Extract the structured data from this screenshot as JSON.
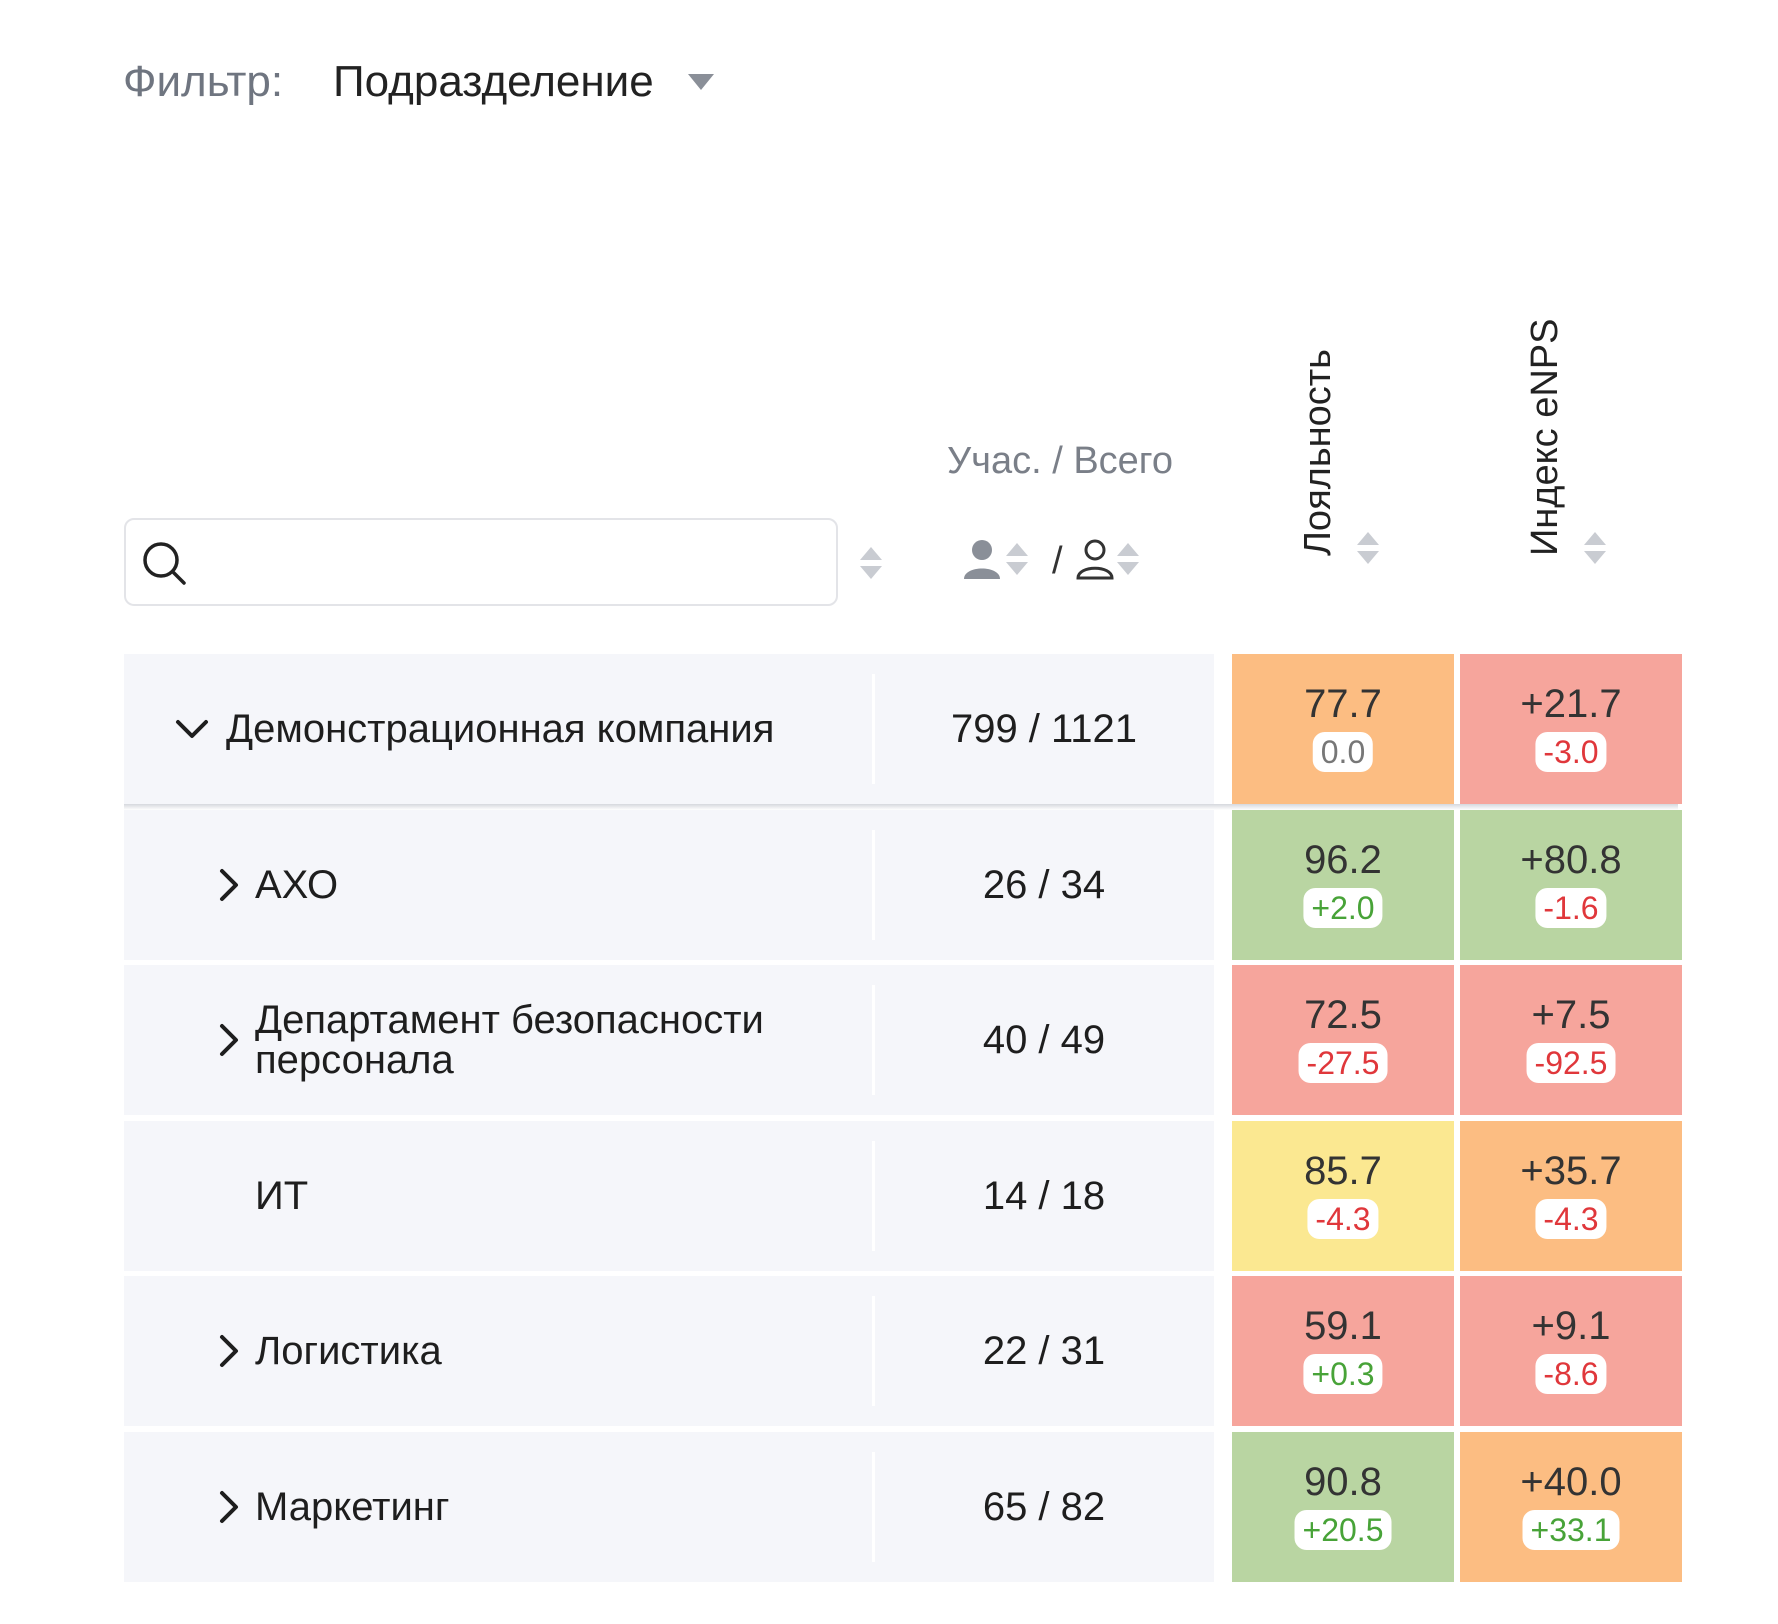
{
  "filter": {
    "label": "Фильтр:",
    "value": "Подразделение"
  },
  "search": {
    "placeholder": ""
  },
  "columns": {
    "participants": "Учас. / Всего",
    "slash": "/",
    "loyalty": "Лояльность",
    "enps": "Индекс eNPS"
  },
  "colors": {
    "orange": "#fcbd82",
    "red": "#f6a59c",
    "green": "#b9d5a2",
    "yellow": "#fbe891",
    "delta_positive": "#48a338",
    "delta_negative": "#e0373b",
    "delta_zero": "#777777"
  },
  "rows": [
    {
      "name": "Демонстрационная компания",
      "count": "799 / 1121",
      "expand": "expanded",
      "loyalty": {
        "value": "77.7",
        "delta": "0.0",
        "color": "orange",
        "delta_type": "zero"
      },
      "enps": {
        "value": "+21.7",
        "delta": "-3.0",
        "color": "red",
        "delta_type": "negative"
      }
    },
    {
      "name": "АХО",
      "count": "26 / 34",
      "expand": "collapsed",
      "loyalty": {
        "value": "96.2",
        "delta": "+2.0",
        "color": "green",
        "delta_type": "positive"
      },
      "enps": {
        "value": "+80.8",
        "delta": "-1.6",
        "color": "green",
        "delta_type": "negative"
      }
    },
    {
      "name": "Департамент безопасности персонала",
      "count": "40 / 49",
      "expand": "collapsed",
      "loyalty": {
        "value": "72.5",
        "delta": "-27.5",
        "color": "red",
        "delta_type": "negative"
      },
      "enps": {
        "value": "+7.5",
        "delta": "-92.5",
        "color": "red",
        "delta_type": "negative"
      }
    },
    {
      "name": "ИТ",
      "count": "14 / 18",
      "expand": "none",
      "loyalty": {
        "value": "85.7",
        "delta": "-4.3",
        "color": "yellow",
        "delta_type": "negative"
      },
      "enps": {
        "value": "+35.7",
        "delta": "-4.3",
        "color": "orange",
        "delta_type": "negative"
      }
    },
    {
      "name": "Логистика",
      "count": "22 / 31",
      "expand": "collapsed",
      "loyalty": {
        "value": "59.1",
        "delta": "+0.3",
        "color": "red",
        "delta_type": "positive"
      },
      "enps": {
        "value": "+9.1",
        "delta": "-8.6",
        "color": "red",
        "delta_type": "negative"
      }
    },
    {
      "name": "Маркетинг",
      "count": "65 / 82",
      "expand": "collapsed",
      "loyalty": {
        "value": "90.8",
        "delta": "+20.5",
        "color": "green",
        "delta_type": "positive"
      },
      "enps": {
        "value": "+40.0",
        "delta": "+33.1",
        "color": "orange",
        "delta_type": "positive"
      }
    }
  ]
}
